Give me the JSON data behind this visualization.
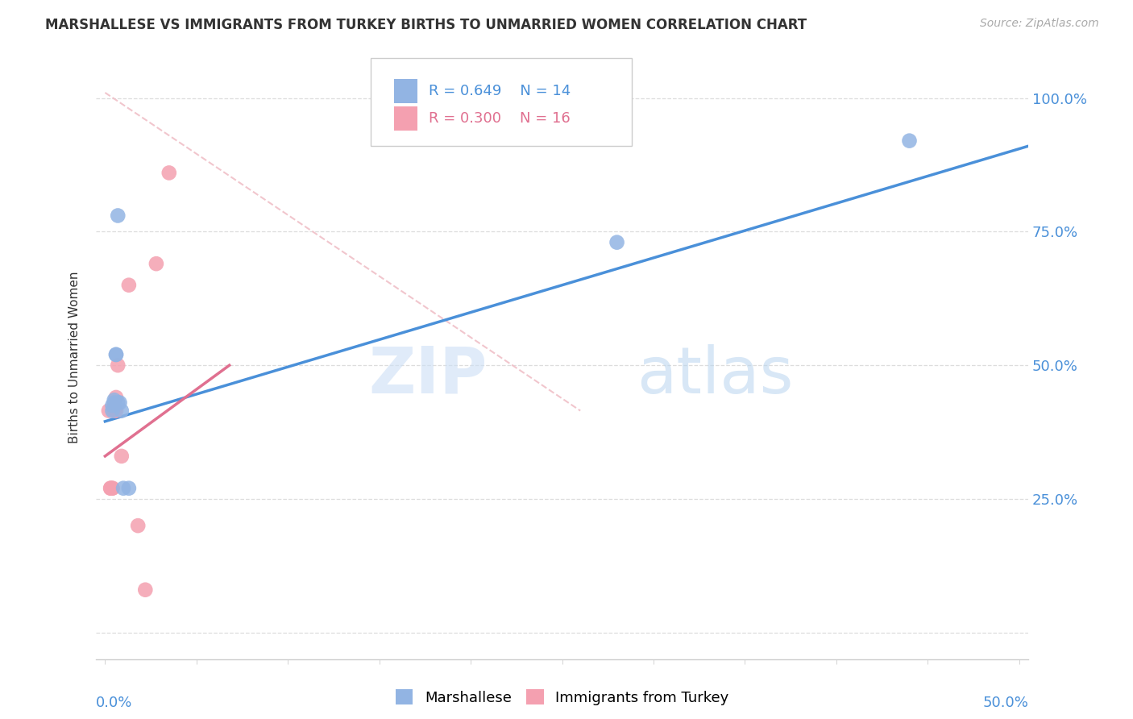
{
  "title": "MARSHALLESE VS IMMIGRANTS FROM TURKEY BIRTHS TO UNMARRIED WOMEN CORRELATION CHART",
  "source": "Source: ZipAtlas.com",
  "ylabel": "Births to Unmarried Women",
  "yticks": [
    0.0,
    0.25,
    0.5,
    0.75,
    1.0
  ],
  "ytick_labels": [
    "",
    "25.0%",
    "50.0%",
    "75.0%",
    "100.0%"
  ],
  "xlim": [
    -0.005,
    0.505
  ],
  "ylim": [
    -0.05,
    1.08
  ],
  "blue_color": "#92b4e3",
  "pink_color": "#f4a0b0",
  "blue_line_color": "#4a90d9",
  "pink_line_color": "#e07090",
  "ref_line_color": "#f0c0c8",
  "watermark_zip": "ZIP",
  "watermark_atlas": "atlas",
  "legend_blue_r": "R = 0.649",
  "legend_blue_n": "N = 14",
  "legend_pink_r": "R = 0.300",
  "legend_pink_n": "N = 16",
  "blue_scatter_x": [
    0.004,
    0.004,
    0.005,
    0.005,
    0.006,
    0.006,
    0.007,
    0.007,
    0.008,
    0.009,
    0.01,
    0.013,
    0.28,
    0.44
  ],
  "blue_scatter_y": [
    0.415,
    0.425,
    0.435,
    0.43,
    0.52,
    0.52,
    0.78,
    0.43,
    0.43,
    0.415,
    0.27,
    0.27,
    0.73,
    0.92
  ],
  "pink_scatter_x": [
    0.002,
    0.003,
    0.003,
    0.004,
    0.004,
    0.005,
    0.005,
    0.006,
    0.006,
    0.007,
    0.009,
    0.013,
    0.018,
    0.022,
    0.028,
    0.035
  ],
  "pink_scatter_y": [
    0.415,
    0.27,
    0.27,
    0.27,
    0.27,
    0.42,
    0.415,
    0.415,
    0.44,
    0.5,
    0.33,
    0.65,
    0.2,
    0.08,
    0.69,
    0.86
  ],
  "blue_line_x0": 0.0,
  "blue_line_x1": 0.505,
  "blue_line_y0": 0.395,
  "blue_line_y1": 0.91,
  "pink_line_x0": 0.0,
  "pink_line_x1": 0.068,
  "pink_line_y0": 0.33,
  "pink_line_y1": 0.5,
  "ref_line_x0": 0.0,
  "ref_line_x1": 0.26,
  "ref_line_y0": 1.01,
  "ref_line_y1": 0.415
}
